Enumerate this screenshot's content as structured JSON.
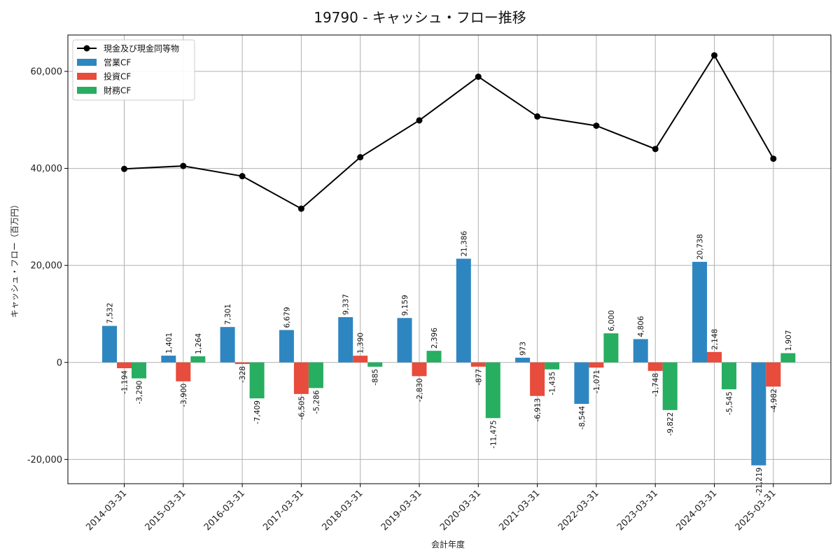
{
  "chart_data": {
    "type": "bar",
    "title": "19790 - キャッシュ・フロー推移",
    "xlabel": "会計年度",
    "ylabel": "キャッシュ・フロー（百万円）",
    "ylim": [
      -25000,
      67500
    ],
    "yticks": [
      -20000,
      0,
      20000,
      40000,
      60000
    ],
    "ytick_labels": [
      "-20,000",
      "0",
      "20,000",
      "40,000",
      "60,000"
    ],
    "grid": true,
    "legend_position": "top-left",
    "categories": [
      "2014-03-31",
      "2015-03-31",
      "2016-03-31",
      "2017-03-31",
      "2018-03-31",
      "2019-03-31",
      "2020-03-31",
      "2021-03-31",
      "2022-03-31",
      "2023-03-31",
      "2024-03-31",
      "2025-03-31"
    ],
    "series": [
      {
        "name": "営業CF",
        "kind": "bar",
        "color": "#2e86c1",
        "values": [
          7532,
          1401,
          7301,
          6679,
          9337,
          9159,
          21386,
          973,
          -8544,
          4806,
          20738,
          -21219
        ],
        "labels": [
          "7,532",
          "1,401",
          "7,301",
          "6,679",
          "9,337",
          "9,159",
          "21,386",
          "973",
          "-8,544",
          "4,806",
          "20,738",
          "-21,219"
        ]
      },
      {
        "name": "投資CF",
        "kind": "bar",
        "color": "#e74c3c",
        "values": [
          -1194,
          -3900,
          -328,
          -6505,
          1390,
          -2830,
          -877,
          -6913,
          -1071,
          -1748,
          2148,
          -4982
        ],
        "labels": [
          "-1,194",
          "-3,900",
          "-328",
          "-6,505",
          "1,390",
          "-2,830",
          "-877",
          "-6,913",
          "-1,071",
          "-1,748",
          "2,148",
          "-4,982"
        ]
      },
      {
        "name": "財務CF",
        "kind": "bar",
        "color": "#27ae60",
        "values": [
          -3290,
          1264,
          -7409,
          -5286,
          -885,
          2396,
          -11475,
          -1435,
          6000,
          -9822,
          -5545,
          1907
        ],
        "labels": [
          "-3,290",
          "1,264",
          "-7,409",
          "-5,286",
          "-885",
          "2,396",
          "-11,475",
          "-1,435",
          "6,000",
          "-9,822",
          "-5,545",
          "1,907"
        ]
      },
      {
        "name": "現金及び現金同等物",
        "kind": "line",
        "color": "#000000",
        "values": [
          39900,
          40500,
          38400,
          31700,
          42300,
          49900,
          58900,
          50700,
          48800,
          44000,
          63300,
          42000
        ]
      }
    ]
  }
}
